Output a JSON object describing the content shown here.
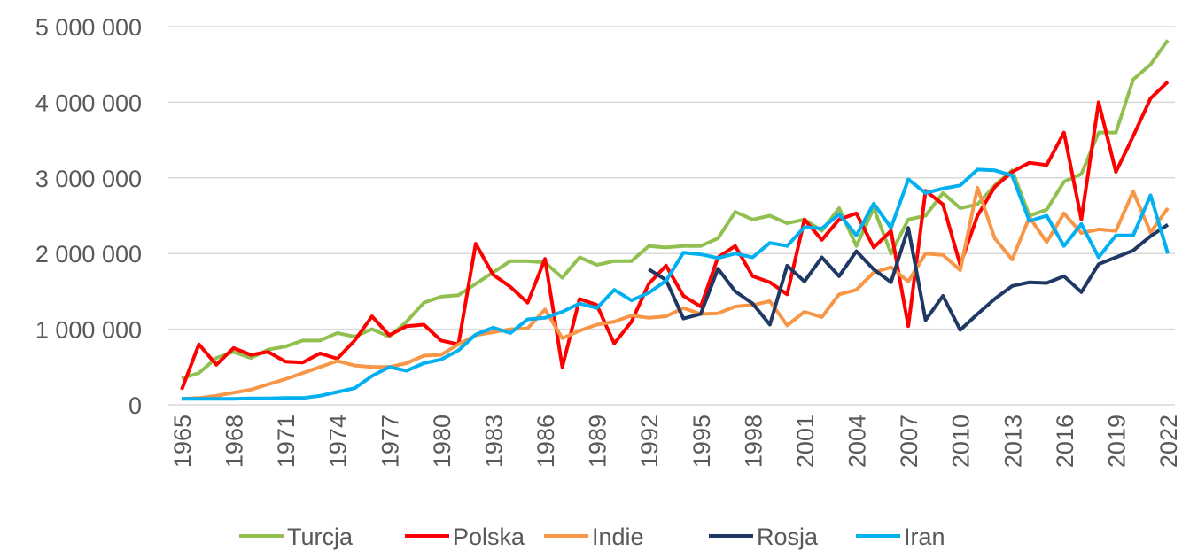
{
  "chart_data": {
    "type": "line",
    "x": [
      1965,
      1966,
      1967,
      1968,
      1969,
      1970,
      1971,
      1972,
      1973,
      1974,
      1975,
      1976,
      1977,
      1978,
      1979,
      1980,
      1981,
      1982,
      1983,
      1984,
      1985,
      1986,
      1987,
      1988,
      1989,
      1990,
      1991,
      1992,
      1993,
      1994,
      1995,
      1996,
      1997,
      1998,
      1999,
      2000,
      2001,
      2002,
      2003,
      2004,
      2005,
      2006,
      2007,
      2008,
      2009,
      2010,
      2011,
      2012,
      2013,
      2014,
      2015,
      2016,
      2017,
      2018,
      2019,
      2020,
      2021,
      2022
    ],
    "xlim": [
      1965,
      2022
    ],
    "xticks": [
      1965,
      1968,
      1971,
      1974,
      1977,
      1980,
      1983,
      1986,
      1989,
      1992,
      1995,
      1998,
      2001,
      2004,
      2007,
      2010,
      2013,
      2016,
      2019,
      2022
    ],
    "ylim": [
      0,
      5000000
    ],
    "yticks": [
      0,
      {
        "value": 1000000,
        "label": "1 000 000"
      },
      {
        "value": 2000000,
        "label": "2 000 000"
      },
      {
        "value": 3000000,
        "label": "3 000 000"
      },
      {
        "value": 4000000,
        "label": "4 000 000"
      },
      {
        "value": 5000000,
        "label": "5 000 000"
      }
    ],
    "grid": true,
    "legend": "bottom",
    "series": [
      {
        "name": "Turcja",
        "color": "#92c050",
        "values": [
          350000,
          420000,
          620000,
          700000,
          620000,
          730000,
          770000,
          850000,
          850000,
          950000,
          900000,
          1000000,
          900000,
          1100000,
          1350000,
          1430000,
          1450000,
          1600000,
          1750000,
          1900000,
          1900000,
          1880000,
          1680000,
          1950000,
          1850000,
          1900000,
          1900000,
          2100000,
          2080000,
          2100000,
          2100000,
          2200000,
          2550000,
          2450000,
          2500000,
          2400000,
          2450000,
          2300000,
          2600000,
          2100000,
          2600000,
          2000000,
          2450000,
          2500000,
          2800000,
          2600000,
          2650000,
          2900000,
          3100000,
          2500000,
          2580000,
          2950000,
          3050000,
          3600000,
          3600000,
          4300000,
          4500000,
          4820000
        ]
      },
      {
        "name": "Polska",
        "color": "#ff0000",
        "values": [
          200000,
          800000,
          530000,
          750000,
          660000,
          700000,
          570000,
          560000,
          680000,
          610000,
          850000,
          1170000,
          920000,
          1040000,
          1060000,
          850000,
          800000,
          2130000,
          1720000,
          1560000,
          1350000,
          1930000,
          500000,
          1400000,
          1320000,
          810000,
          1100000,
          1600000,
          1840000,
          1440000,
          1300000,
          1950000,
          2100000,
          1700000,
          1620000,
          1460000,
          2450000,
          2180000,
          2450000,
          2530000,
          2080000,
          2300000,
          1040000,
          2830000,
          2650000,
          1850000,
          2500000,
          2880000,
          3080000,
          3200000,
          3170000,
          3600000,
          2450000,
          4000000,
          3080000,
          3550000,
          4050000,
          4270000
        ]
      },
      {
        "name": "Indie",
        "color": "#f79646",
        "values": [
          80000,
          90000,
          120000,
          160000,
          200000,
          270000,
          340000,
          420000,
          500000,
          580000,
          520000,
          500000,
          500000,
          550000,
          650000,
          660000,
          800000,
          920000,
          960000,
          1000000,
          1010000,
          1260000,
          880000,
          980000,
          1060000,
          1100000,
          1180000,
          1150000,
          1170000,
          1280000,
          1200000,
          1210000,
          1300000,
          1320000,
          1370000,
          1050000,
          1230000,
          1160000,
          1460000,
          1520000,
          1750000,
          1820000,
          1630000,
          2000000,
          1980000,
          1780000,
          2870000,
          2200000,
          1920000,
          2480000,
          2150000,
          2530000,
          2270000,
          2320000,
          2300000,
          2820000,
          2280000,
          2600000
        ]
      },
      {
        "name": "Rosja",
        "color": "#1f3864",
        "values": [
          null,
          null,
          null,
          null,
          null,
          null,
          null,
          null,
          null,
          null,
          null,
          null,
          null,
          null,
          null,
          null,
          null,
          null,
          null,
          null,
          null,
          null,
          null,
          null,
          null,
          null,
          null,
          1790000,
          1650000,
          1140000,
          1200000,
          1800000,
          1500000,
          1340000,
          1060000,
          1840000,
          1630000,
          1950000,
          1700000,
          2030000,
          1790000,
          1620000,
          2340000,
          1120000,
          1440000,
          990000,
          1200000,
          1400000,
          1570000,
          1620000,
          1610000,
          1700000,
          1490000,
          1860000,
          1950000,
          2040000,
          2230000,
          2380000
        ]
      },
      {
        "name": "Iran",
        "color": "#00b0f0",
        "values": [
          80000,
          80000,
          80000,
          80000,
          85000,
          85000,
          90000,
          90000,
          120000,
          170000,
          220000,
          380000,
          500000,
          450000,
          550000,
          600000,
          720000,
          930000,
          1020000,
          950000,
          1130000,
          1150000,
          1230000,
          1340000,
          1280000,
          1520000,
          1380000,
          1480000,
          1640000,
          2010000,
          1990000,
          1940000,
          2000000,
          1950000,
          2140000,
          2100000,
          2350000,
          2330000,
          2520000,
          2240000,
          2660000,
          2340000,
          2980000,
          2800000,
          2860000,
          2900000,
          3110000,
          3100000,
          3030000,
          2430000,
          2500000,
          2100000,
          2390000,
          1950000,
          2240000,
          2240000,
          2770000,
          2000000
        ]
      }
    ]
  }
}
